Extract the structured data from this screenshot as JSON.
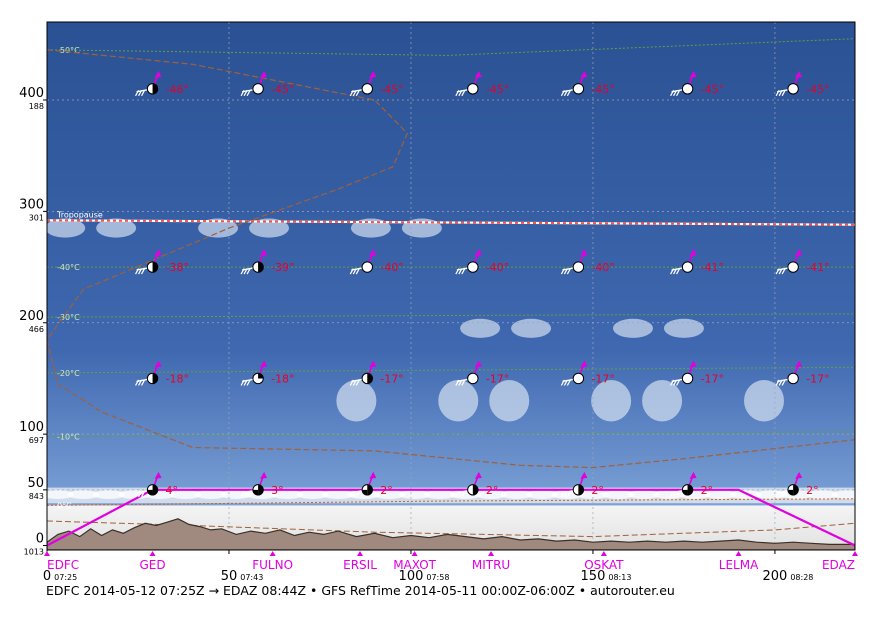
{
  "footer": "EDFC 2014-05-12 07:25Z → EDAZ 08:44Z • GFS RefTime 2014-05-11 00:00Z-06:00Z • autorouter.eu",
  "colors": {
    "sky_top": "#2a5193",
    "sky_bottom": "#7ea4d8",
    "terrain": "#a08a80",
    "terrain_edge": "#3a3028",
    "route": "#e000e0",
    "temp_text": "#e8002a",
    "waypoint": "#e000e0",
    "tropopause": "#ff5040",
    "freezing": "#d86010",
    "isotherm": "#5fa040"
  },
  "chart_data": {
    "type": "vertical_profile",
    "x_unit": "NM",
    "y_unit": "FL",
    "xlim": [
      0,
      222
    ],
    "ylim": [
      -4,
      470
    ],
    "grid": true,
    "y_ticks": [
      {
        "fl": 0,
        "label": "0",
        "hpa": "1013"
      },
      {
        "fl": 50,
        "label": "50",
        "hpa": "843"
      },
      {
        "fl": 100,
        "label": "100",
        "hpa": "697"
      },
      {
        "fl": 200,
        "label": "200",
        "hpa": "466"
      },
      {
        "fl": 300,
        "label": "300",
        "hpa": "301"
      },
      {
        "fl": 400,
        "label": "400",
        "hpa": "188"
      }
    ],
    "x_ticks": [
      {
        "nm": 0,
        "label": "0",
        "time": "07:25"
      },
      {
        "nm": 50,
        "label": "50",
        "time": "07:43"
      },
      {
        "nm": 100,
        "label": "100",
        "time": "07:58"
      },
      {
        "nm": 150,
        "label": "150",
        "time": "08:13"
      },
      {
        "nm": 200,
        "label": "200",
        "time": "08:28"
      }
    ],
    "waypoints": [
      {
        "name": "EDFC",
        "nm": 0
      },
      {
        "name": "GED",
        "nm": 29
      },
      {
        "name": "FULNO",
        "nm": 62
      },
      {
        "name": "ERSIL",
        "nm": 86
      },
      {
        "name": "MAXOT",
        "nm": 101
      },
      {
        "name": "MITRU",
        "nm": 122
      },
      {
        "name": "OSKAT",
        "nm": 153
      },
      {
        "name": "LELMA",
        "nm": 190
      },
      {
        "name": "EDAZ",
        "nm": 222
      }
    ],
    "route_profile": [
      {
        "nm": 0,
        "fl": 0
      },
      {
        "nm": 29,
        "fl": 50
      },
      {
        "nm": 190,
        "fl": 50
      },
      {
        "nm": 222,
        "fl": 0
      }
    ],
    "terrain": [
      {
        "nm": 0,
        "fl": 3
      },
      {
        "nm": 3,
        "fl": 10
      },
      {
        "nm": 6,
        "fl": 13
      },
      {
        "nm": 9,
        "fl": 8
      },
      {
        "nm": 12,
        "fl": 15
      },
      {
        "nm": 15,
        "fl": 9
      },
      {
        "nm": 18,
        "fl": 14
      },
      {
        "nm": 21,
        "fl": 11
      },
      {
        "nm": 24,
        "fl": 16
      },
      {
        "nm": 27,
        "fl": 20
      },
      {
        "nm": 30,
        "fl": 18
      },
      {
        "nm": 33,
        "fl": 21
      },
      {
        "nm": 36,
        "fl": 24
      },
      {
        "nm": 39,
        "fl": 19
      },
      {
        "nm": 42,
        "fl": 17
      },
      {
        "nm": 45,
        "fl": 14
      },
      {
        "nm": 48,
        "fl": 15
      },
      {
        "nm": 52,
        "fl": 10
      },
      {
        "nm": 56,
        "fl": 13
      },
      {
        "nm": 60,
        "fl": 11
      },
      {
        "nm": 64,
        "fl": 14
      },
      {
        "nm": 68,
        "fl": 9
      },
      {
        "nm": 72,
        "fl": 12
      },
      {
        "nm": 76,
        "fl": 10
      },
      {
        "nm": 80,
        "fl": 13
      },
      {
        "nm": 85,
        "fl": 8
      },
      {
        "nm": 90,
        "fl": 11
      },
      {
        "nm": 95,
        "fl": 7
      },
      {
        "nm": 100,
        "fl": 9
      },
      {
        "nm": 105,
        "fl": 7
      },
      {
        "nm": 110,
        "fl": 10
      },
      {
        "nm": 115,
        "fl": 8
      },
      {
        "nm": 120,
        "fl": 6
      },
      {
        "nm": 125,
        "fl": 8
      },
      {
        "nm": 130,
        "fl": 5
      },
      {
        "nm": 135,
        "fl": 6
      },
      {
        "nm": 140,
        "fl": 4
      },
      {
        "nm": 145,
        "fl": 5
      },
      {
        "nm": 150,
        "fl": 3
      },
      {
        "nm": 155,
        "fl": 4
      },
      {
        "nm": 160,
        "fl": 3
      },
      {
        "nm": 165,
        "fl": 4
      },
      {
        "nm": 170,
        "fl": 3
      },
      {
        "nm": 175,
        "fl": 4
      },
      {
        "nm": 180,
        "fl": 3
      },
      {
        "nm": 185,
        "fl": 4
      },
      {
        "nm": 190,
        "fl": 5
      },
      {
        "nm": 195,
        "fl": 3
      },
      {
        "nm": 200,
        "fl": 2
      },
      {
        "nm": 205,
        "fl": 3
      },
      {
        "nm": 210,
        "fl": 2
      },
      {
        "nm": 215,
        "fl": 1
      },
      {
        "nm": 222,
        "fl": 1
      }
    ],
    "tropopause": {
      "label": "Tropopause",
      "points": [
        {
          "nm": 0,
          "fl": 292
        },
        {
          "nm": 222,
          "fl": 288
        }
      ]
    },
    "isotherms": [
      {
        "label": "-50°C",
        "points": [
          {
            "nm": 0,
            "fl": 445
          },
          {
            "nm": 110,
            "fl": 440
          },
          {
            "nm": 222,
            "fl": 455
          }
        ]
      },
      {
        "label": "-40°C",
        "points": [
          {
            "nm": 0,
            "fl": 250
          },
          {
            "nm": 222,
            "fl": 250
          }
        ]
      },
      {
        "label": "-30°C",
        "points": [
          {
            "nm": 0,
            "fl": 205
          },
          {
            "nm": 222,
            "fl": 208
          }
        ]
      },
      {
        "label": "-20°C",
        "points": [
          {
            "nm": 0,
            "fl": 155
          },
          {
            "nm": 222,
            "fl": 160
          }
        ]
      },
      {
        "label": "-10°C",
        "points": [
          {
            "nm": 0,
            "fl": 98
          },
          {
            "nm": 222,
            "fl": 102
          }
        ]
      },
      {
        "label": "0°C",
        "points": [
          {
            "nm": 0,
            "fl": 36
          },
          {
            "nm": 110,
            "fl": 40
          },
          {
            "nm": 222,
            "fl": 42
          }
        ]
      }
    ],
    "freezing_profile": [
      {
        "nm": 0,
        "fl": 445
      },
      {
        "nm": 40,
        "fl": 432
      },
      {
        "nm": 90,
        "fl": 400
      },
      {
        "nm": 99,
        "fl": 370
      },
      {
        "nm": 95,
        "fl": 340
      },
      {
        "nm": 80,
        "fl": 320
      },
      {
        "nm": 50,
        "fl": 285
      },
      {
        "nm": 10,
        "fl": 230
      },
      {
        "nm": 0,
        "fl": 185
      },
      {
        "nm": 3,
        "fl": 145
      },
      {
        "nm": 15,
        "fl": 120
      },
      {
        "nm": 40,
        "fl": 88
      },
      {
        "nm": 90,
        "fl": 85
      },
      {
        "nm": 130,
        "fl": 72
      },
      {
        "nm": 150,
        "fl": 70
      },
      {
        "nm": 175,
        "fl": 78
      },
      {
        "nm": 222,
        "fl": 95
      }
    ],
    "surface_line": [
      {
        "nm": 0,
        "fl": 22
      },
      {
        "nm": 40,
        "fl": 18
      },
      {
        "nm": 90,
        "fl": 12
      },
      {
        "nm": 150,
        "fl": 8
      },
      {
        "nm": 200,
        "fl": 14
      },
      {
        "nm": 222,
        "fl": 20
      }
    ],
    "cloud_layers": [
      {
        "nm_from": 0,
        "nm_to": 222,
        "fl_base": 38,
        "fl_top": 52,
        "kind": "stratus"
      },
      {
        "nm_from": 80,
        "nm_to": 205,
        "fl_base": 115,
        "fl_top": 145,
        "kind": "patches"
      },
      {
        "nm_from": 100,
        "nm_to": 185,
        "fl_base": 190,
        "fl_top": 200,
        "kind": "patches"
      },
      {
        "nm_from": 0,
        "nm_to": 110,
        "fl_base": 280,
        "fl_top": 290,
        "kind": "patches"
      }
    ],
    "wind_levels": [
      {
        "fl": 410,
        "temps": [
          "-46°",
          "-45°",
          "-45°",
          "-45°",
          "-45°",
          "-45°",
          "-45°"
        ],
        "cover": [
          0.5,
          0,
          0,
          0,
          0,
          0,
          0
        ]
      },
      {
        "fl": 250,
        "temps": [
          "-38°",
          "-39°",
          "-40°",
          "-40°",
          "-40°",
          "-41°",
          "-41°"
        ],
        "cover": [
          0.5,
          0.5,
          0,
          0,
          0,
          0,
          0
        ]
      },
      {
        "fl": 150,
        "temps": [
          "-18°",
          "-18°",
          "-17°",
          "-17°",
          "-17°",
          "-17°",
          "-17°"
        ],
        "cover": [
          0.5,
          0.25,
          0.5,
          0,
          0,
          0,
          0
        ]
      },
      {
        "fl": 50,
        "temps": [
          "4°",
          "3°",
          "2°",
          "2°",
          "2°",
          "2°",
          "2°"
        ],
        "cover": [
          0.75,
          0.75,
          0.75,
          0.5,
          0.5,
          0.75,
          0.75
        ]
      }
    ],
    "wind_stations_nm": [
      29,
      58,
      88,
      117,
      146,
      176,
      205
    ]
  }
}
